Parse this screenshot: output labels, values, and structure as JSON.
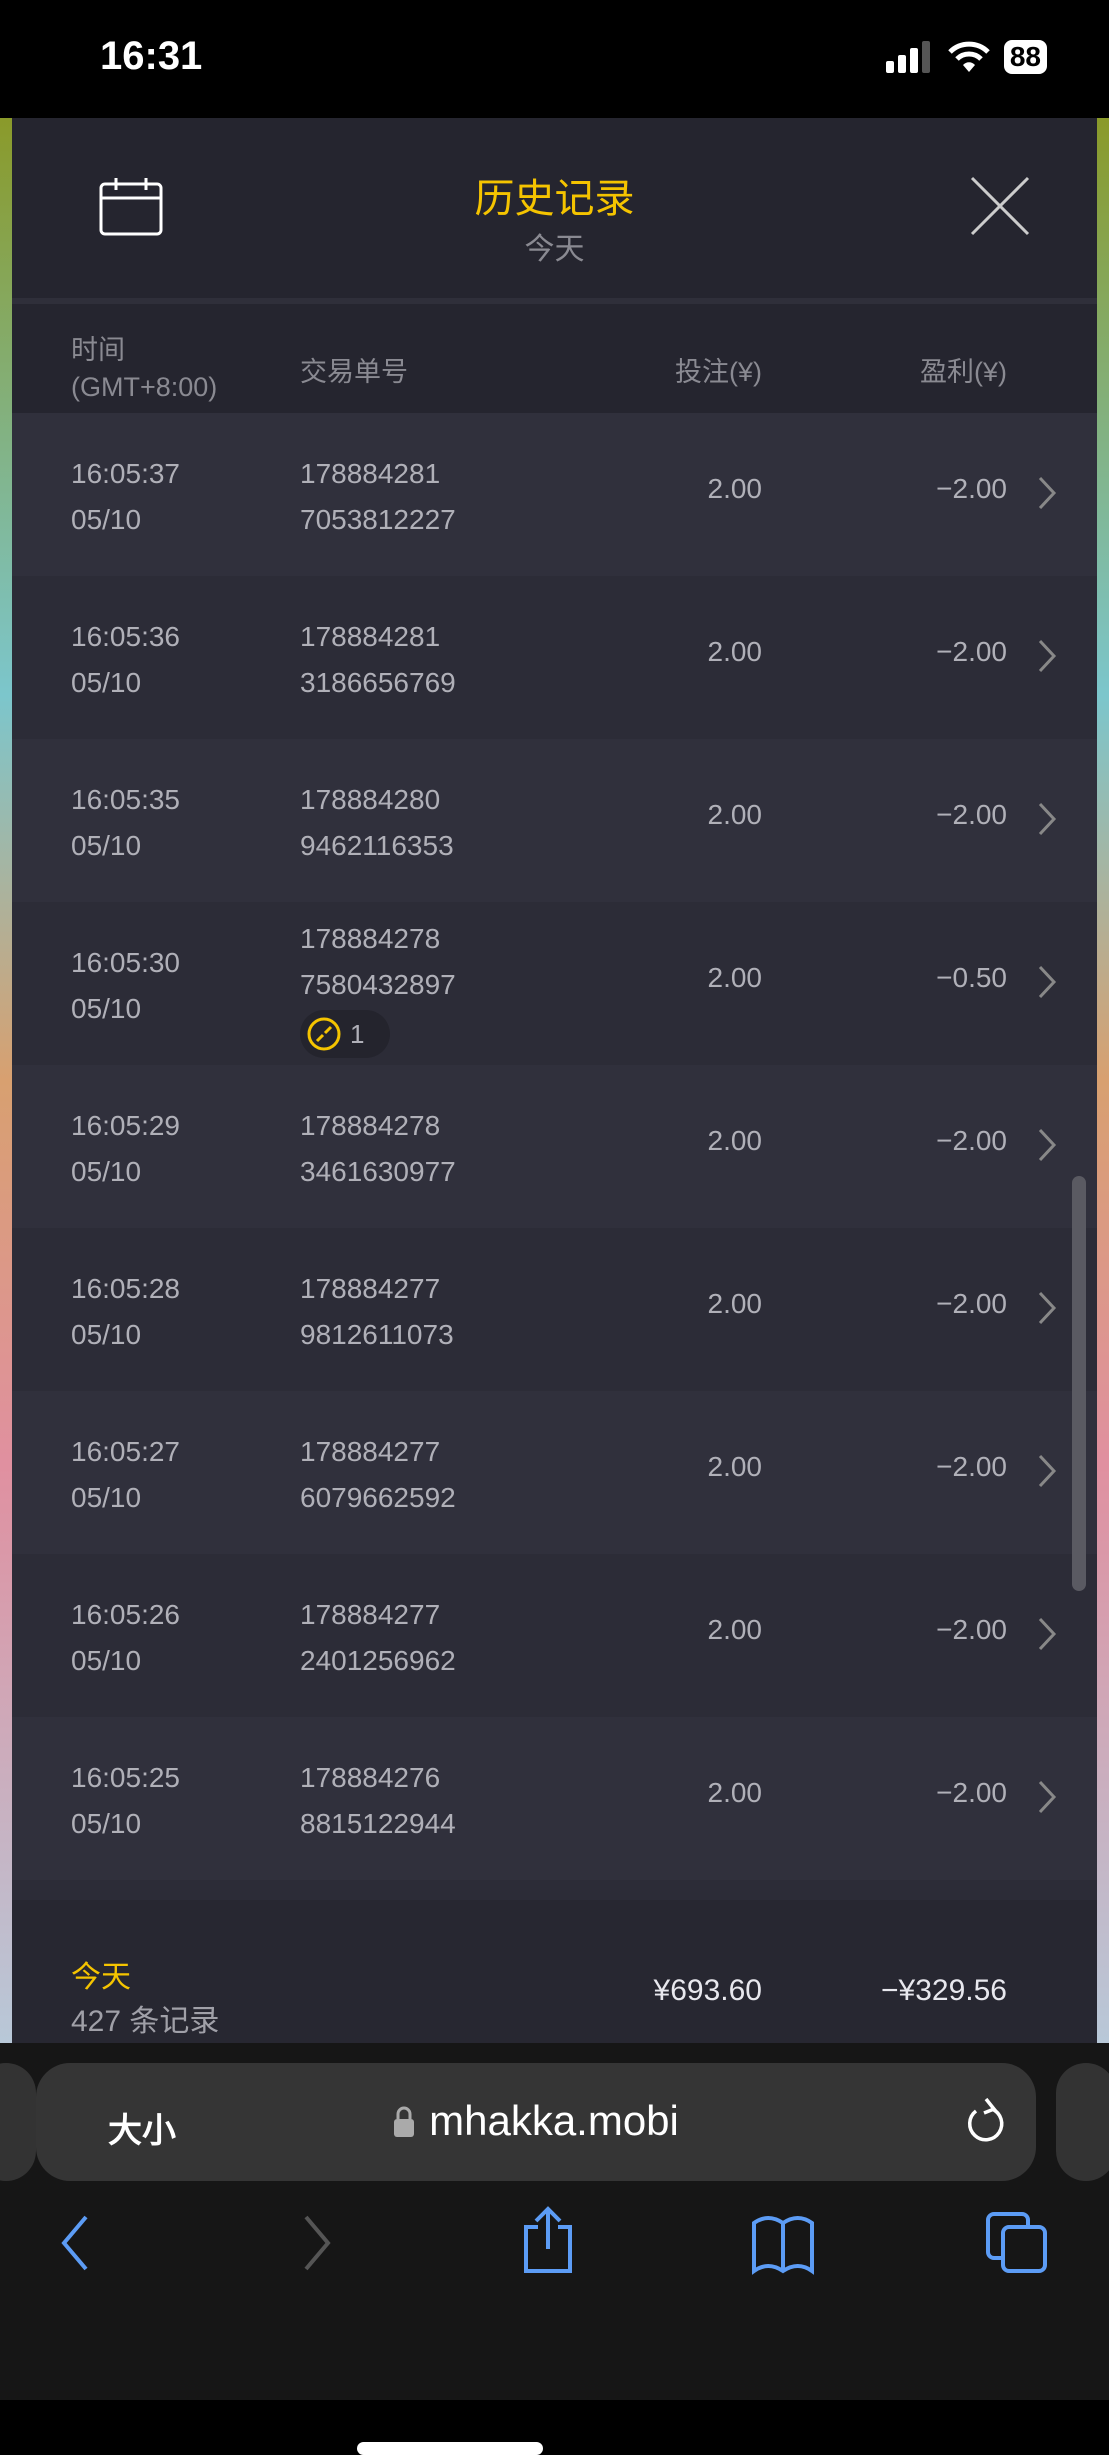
{
  "status_bar": {
    "time": "16:31",
    "battery": "88",
    "icons": [
      "signal-icon",
      "wifi-icon",
      "battery-icon"
    ]
  },
  "header": {
    "title": "历史记录",
    "subtitle": "今天",
    "left_icon": "calendar-icon",
    "right_icon": "close-icon"
  },
  "columns": {
    "time": "时间",
    "timezone": "(GMT+8:00)",
    "order_id": "交易单号",
    "bet": "投注(¥)",
    "profit": "盈利(¥)"
  },
  "rows": [
    {
      "time": "16:05:37",
      "date": "05/10",
      "id1": "178884281",
      "id2": "7053812227",
      "bet": "2.00",
      "profit": "−2.00"
    },
    {
      "time": "16:05:36",
      "date": "05/10",
      "id1": "178884281",
      "id2": "3186656769",
      "bet": "2.00",
      "profit": "−2.00"
    },
    {
      "time": "16:05:35",
      "date": "05/10",
      "id1": "178884280",
      "id2": "9462116353",
      "bet": "2.00",
      "profit": "−2.00"
    },
    {
      "time": "16:05:30",
      "date": "05/10",
      "id1": "178884278",
      "id2": "7580432897",
      "bet": "2.00",
      "profit": "−0.50",
      "badge": "1"
    },
    {
      "time": "16:05:29",
      "date": "05/10",
      "id1": "178884278",
      "id2": "3461630977",
      "bet": "2.00",
      "profit": "−2.00"
    },
    {
      "time": "16:05:28",
      "date": "05/10",
      "id1": "178884277",
      "id2": "9812611073",
      "bet": "2.00",
      "profit": "−2.00"
    },
    {
      "time": "16:05:27",
      "date": "05/10",
      "id1": "178884277",
      "id2": "6079662592",
      "bet": "2.00",
      "profit": "−2.00"
    },
    {
      "time": "16:05:26",
      "date": "05/10",
      "id1": "178884277",
      "id2": "2401256962",
      "bet": "2.00",
      "profit": "−2.00"
    },
    {
      "time": "16:05:25",
      "date": "05/10",
      "id1": "178884276",
      "id2": "8815122944",
      "bet": "2.00",
      "profit": "−2.00"
    }
  ],
  "footer": {
    "label": "今天",
    "count": "427 条记录",
    "total_bet": "¥693.60",
    "total_profit": "−¥329.56"
  },
  "browser": {
    "text_size": "大小",
    "domain": "mhakka.mobi"
  },
  "colors": {
    "accent": "#f5c400",
    "panel": "#25252f",
    "link_blue": "#5c9cf5"
  }
}
